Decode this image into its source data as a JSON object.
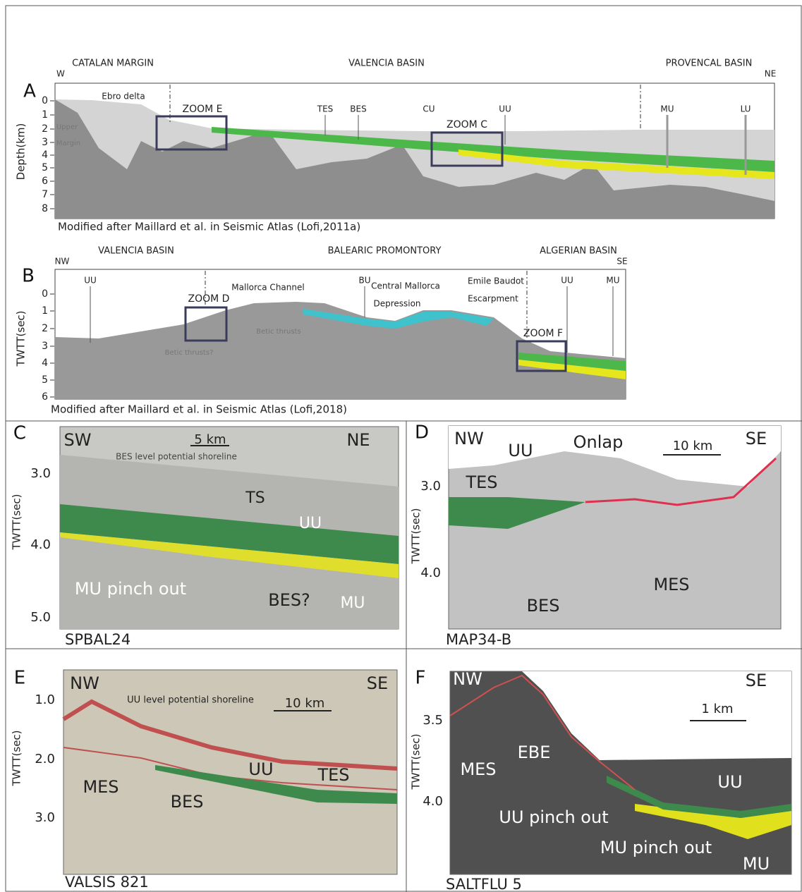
{
  "panels": [
    {
      "letter": "A",
      "regions": [
        "CATALAN MARGIN",
        "VALENCIA BASIN",
        "PROVENCAL BASIN"
      ],
      "directions": [
        "W",
        "NE"
      ],
      "axis_title": "Depth(km)",
      "ticks": [
        "0",
        "1",
        "2",
        "3",
        "4",
        "5",
        "6",
        "7",
        "8"
      ],
      "labels": [
        "Ebro delta",
        "ZOOM E",
        "Upper",
        "Margin",
        "TES",
        "BES",
        "CU",
        "UU",
        "ZOOM C",
        "MU",
        "LU"
      ],
      "caption": "Modified after Maillard et al. in Seismic Atlas (Lofi,2011a)"
    },
    {
      "letter": "B",
      "regions": [
        "VALENCIA BASIN",
        "BALEARIC PROMONTORY",
        "ALGERIAN BASIN"
      ],
      "directions": [
        "NW",
        "SE"
      ],
      "axis_title": "TWTT(sec)",
      "ticks": [
        "0",
        "1",
        "2",
        "3",
        "4",
        "5",
        "6"
      ],
      "labels": [
        "UU",
        "ZOOM D",
        "Mallorca Channel",
        "BU",
        "Central Mallorca",
        "Depression",
        "Emile Baudot",
        "Escarpment",
        "ZOOM F",
        "UU",
        "MU",
        "Betic thrusts?",
        "Betic thrusts"
      ],
      "caption": "Modified after Maillard et al. in Seismic Atlas (Lofi,2018)"
    },
    {
      "letter": "C",
      "directions": [
        "SW",
        "NE"
      ],
      "scale": "5 km",
      "axis_title": "TWTT(sec)",
      "ticks": [
        "3.0",
        "4.0",
        "5.0"
      ],
      "labels": [
        "BES level potential shoreline",
        "TS",
        "UU",
        "MU pinch out",
        "BES?",
        "MU"
      ],
      "caption": "SPBAL24"
    },
    {
      "letter": "D",
      "directions": [
        "NW",
        "SE"
      ],
      "scale": "10 km",
      "axis_title": "TWTT(sec)",
      "ticks": [
        "3.0",
        "4.0"
      ],
      "labels": [
        "UU",
        "Onlap",
        "TES",
        "MES",
        "BES"
      ],
      "caption": "MAP34-B"
    },
    {
      "letter": "E",
      "directions": [
        "NW",
        "SE"
      ],
      "scale": "10 km",
      "axis_title": "TWTT(sec)",
      "ticks": [
        "1.0",
        "2.0",
        "3.0"
      ],
      "labels": [
        "UU level potential shoreline",
        "MES",
        "BES",
        "UU",
        "TES"
      ],
      "caption": "VALSIS 821"
    },
    {
      "letter": "F",
      "directions": [
        "NW",
        "SE"
      ],
      "scale": "1 km",
      "axis_title": "TWTT(sec)",
      "ticks": [
        "3.5",
        "4.0"
      ],
      "labels": [
        "MES",
        "EBE",
        "UU pinch out",
        "UU",
        "MU pinch out",
        "MU"
      ],
      "caption": "SALTFLU 5"
    }
  ]
}
